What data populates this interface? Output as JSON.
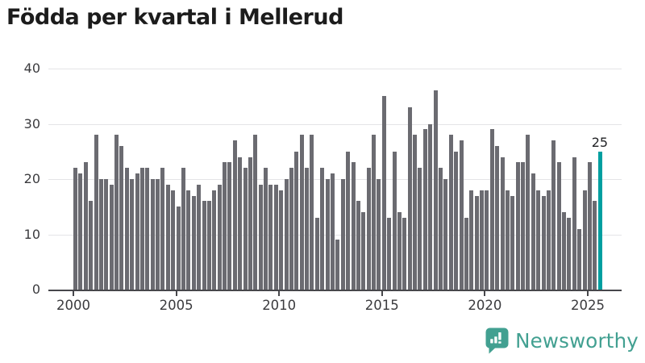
{
  "title": "Födda per kvartal i Mellerud",
  "chart_data": {
    "type": "bar",
    "title": "Födda per kvartal i Mellerud",
    "xlabel": "",
    "ylabel": "",
    "ylim": [
      0,
      40
    ],
    "grid": true,
    "y_ticks": [
      0,
      10,
      20,
      30,
      40
    ],
    "x_tick_labels": [
      "2000",
      "2005",
      "2010",
      "2015",
      "2020",
      "2025"
    ],
    "period_start": "2000 Q1",
    "period_end": "2025 Q3",
    "values": [
      22,
      21,
      23,
      16,
      28,
      20,
      20,
      19,
      28,
      26,
      22,
      20,
      21,
      22,
      22,
      20,
      20,
      22,
      19,
      18,
      15,
      22,
      18,
      17,
      19,
      16,
      16,
      18,
      19,
      23,
      23,
      27,
      24,
      22,
      24,
      28,
      19,
      22,
      19,
      19,
      18,
      20,
      22,
      25,
      28,
      22,
      28,
      13,
      22,
      20,
      21,
      9,
      20,
      25,
      23,
      16,
      14,
      22,
      28,
      20,
      35,
      13,
      25,
      14,
      13,
      33,
      28,
      22,
      29,
      30,
      36,
      22,
      20,
      28,
      25,
      27,
      13,
      18,
      17,
      18,
      18,
      29,
      26,
      24,
      18,
      17,
      23,
      23,
      28,
      21,
      18,
      17,
      18,
      27,
      23,
      14,
      13,
      24,
      11,
      18,
      23,
      16,
      25
    ],
    "bar_color": "#6b6b71",
    "highlight_color": "#009fa0",
    "highlight_last_bar": true,
    "last_value_label": "25"
  },
  "annotation": {
    "last_value": "25"
  },
  "footer": {
    "brand": "Newsworthy",
    "brand_color": "#42a091"
  }
}
